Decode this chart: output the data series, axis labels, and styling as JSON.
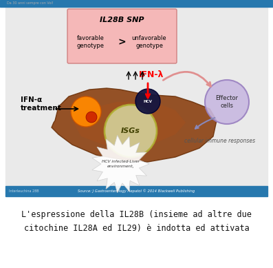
{
  "fig_width": 3.97,
  "fig_height": 3.89,
  "dpi": 100,
  "bg_color": "#ffffff",
  "top_bar_color": "#2778ae",
  "bottom_bar_color": "#2778ae",
  "slide_bg_color": "#eaeaea",
  "pink_box_color": "#f5b8b8",
  "pink_box_edge_color": "#d08080",
  "il28b_snp_text": "IL28B SNP",
  "favorable_text": "favorable\ngenotype",
  "greater_text": ">",
  "unfavorable_text": "unfavorable\ngenotype",
  "ifn_alpha_text": "IFN-α\ntreatment",
  "ifn_lambda_text": "IFN-λ",
  "effector_text": "Effector\ncells",
  "cellular_text": "cellular immune responses",
  "isgs_text": "ISGs",
  "hcv_text": "HCV infected-Liver\nenvironment,",
  "source_text": "Source: J Gastroenterology Hepatol © 2014 Blackwell Publishing",
  "caption_line1": "L'espressione della IL28B (insieme ad altre due",
  "caption_line2": "citochine IL28A ed IL29) è indotta ed attivata",
  "caption_color": "#111111",
  "caption_fontsize": 8.5,
  "top_label_text": "Da 30 anni sempre con Voi!",
  "top_label_color": "#aaaaaa",
  "slide_label_text": "Interleuchina 28B"
}
